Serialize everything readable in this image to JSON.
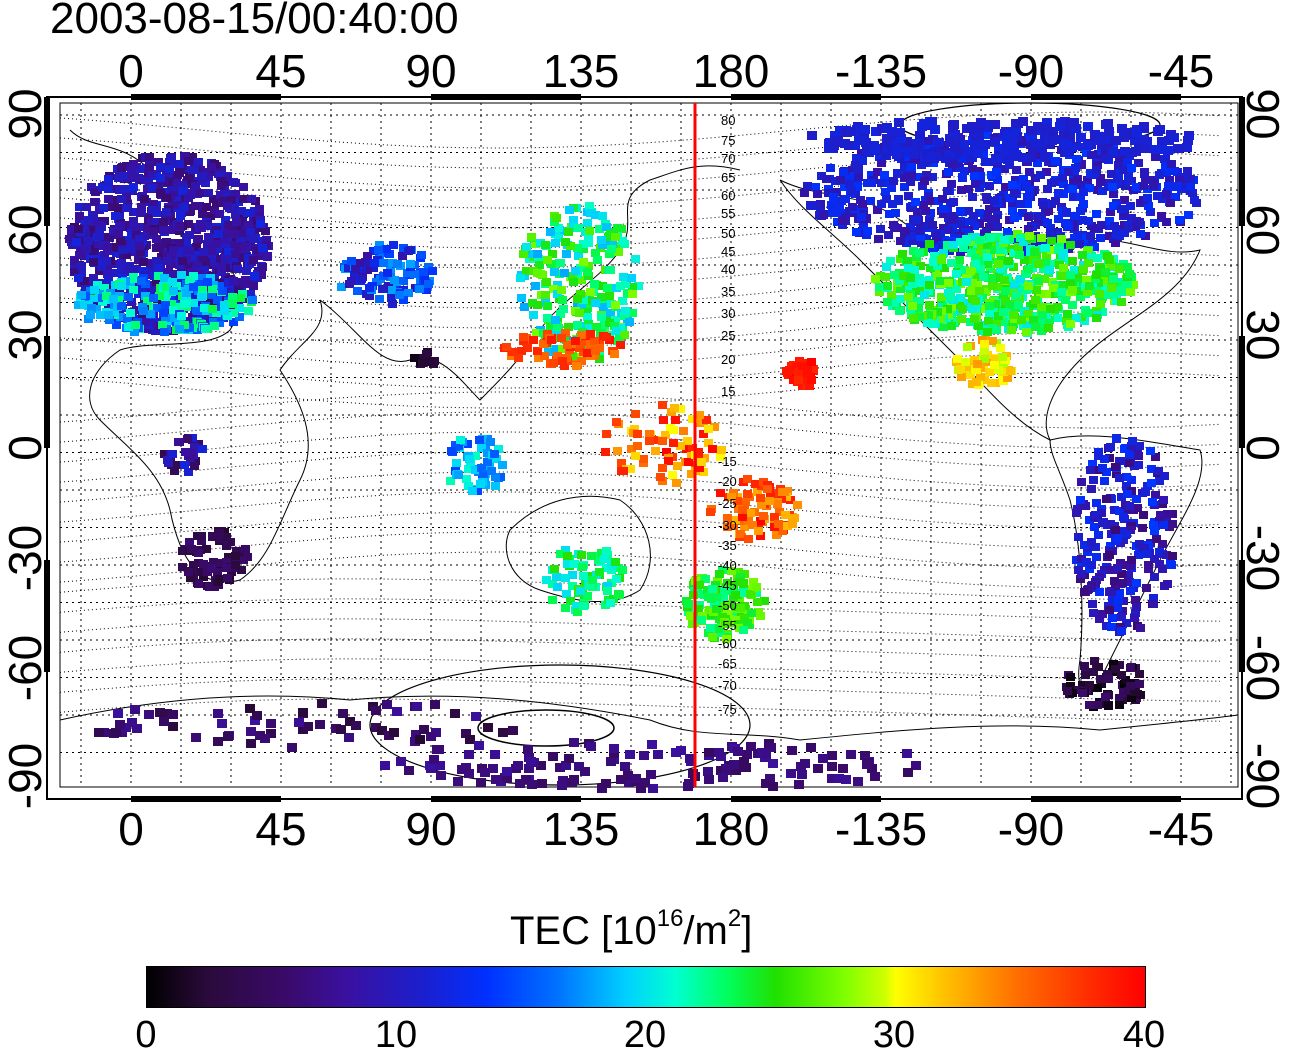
{
  "timestamp": "2003-08-15/00:40:00",
  "lon_ticks": [
    "0",
    "45",
    "90",
    "135",
    "180",
    "-135",
    "-90",
    "-45"
  ],
  "lat_ticks": [
    "90",
    "60",
    "30",
    "0",
    "-30",
    "-60",
    "-90"
  ],
  "contour_labels_north": [
    "80",
    "75",
    "70",
    "65",
    "60",
    "55",
    "50",
    "45",
    "40",
    "35",
    "30",
    "25",
    "20",
    "15"
  ],
  "contour_labels_south": [
    "-15",
    "-20",
    "-25",
    "-30",
    "-35",
    "-40",
    "-45",
    "-50",
    "-55",
    "-60",
    "-65",
    "-70",
    "-75"
  ],
  "colorbar": {
    "title_prefix": "TEC  [10",
    "title_exp": "16",
    "title_mid": "/m",
    "title_exp2": "2",
    "title_suffix": "]",
    "ticks": [
      "0",
      "10",
      "20",
      "30",
      "40"
    ]
  },
  "colors": {
    "terminator": "#ff0000",
    "grid": "#000000",
    "high": "#ff0000",
    "low": "#1a0030"
  }
}
